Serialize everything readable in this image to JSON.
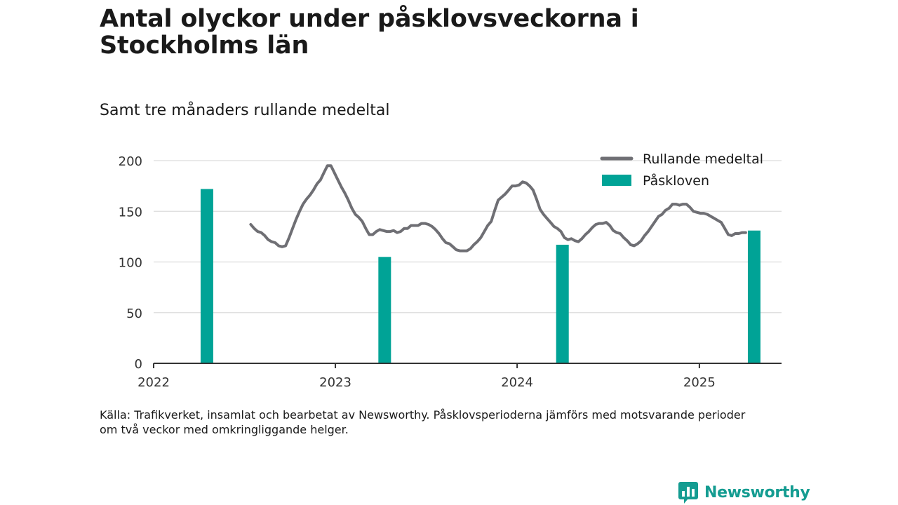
{
  "title": "Antal olyckor under påsklovsveckorna i Stockholms län",
  "subtitle": "Samt tre månaders rullande medeltal",
  "source": {
    "line1": "Källa: Trafikverket, insamlat och bearbetat av Newsworthy. Påsklovsperioderna jämförs med motsvarande perioder",
    "line2": "om två veckor med omkringliggande helger."
  },
  "logo": {
    "icon": "newsworthy-logo-icon",
    "text": "Newsworthy"
  },
  "colors": {
    "line": "#6f6f74",
    "bar": "#00a396",
    "grid": "#dcdcdc",
    "axis": "#333333",
    "logo": "#149c91"
  },
  "chart_data": {
    "type": "bar",
    "title": "Antal olyckor under påsklovsveckorna i Stockholms län",
    "subtitle": "Samt tre månaders rullande medeltal",
    "xlabel": "",
    "ylabel": "",
    "ylim": [
      0,
      200
    ],
    "yticks": [
      "0",
      "50",
      "100",
      "150",
      "200"
    ],
    "xlim": [
      "2022-01-01",
      "2025-06-15"
    ],
    "xticks": [
      "2022",
      "2023",
      "2024",
      "2025"
    ],
    "grid": true,
    "legend_position": "top-right",
    "series": [
      {
        "name": "Påskloven",
        "type": "bar",
        "color": "#00a396",
        "points": [
          {
            "x": "2022-04-18",
            "y": 172
          },
          {
            "x": "2023-04-10",
            "y": 105
          },
          {
            "x": "2024-04-01",
            "y": 117
          },
          {
            "x": "2025-04-21",
            "y": 131
          }
        ]
      },
      {
        "name": "Rullande medeltal",
        "type": "line",
        "color": "#6f6f74",
        "points": [
          {
            "x": "2022-07-15",
            "y": 137
          },
          {
            "x": "2022-07-22",
            "y": 133
          },
          {
            "x": "2022-07-29",
            "y": 130
          },
          {
            "x": "2022-08-05",
            "y": 129
          },
          {
            "x": "2022-08-12",
            "y": 126
          },
          {
            "x": "2022-08-19",
            "y": 122
          },
          {
            "x": "2022-08-26",
            "y": 120
          },
          {
            "x": "2022-09-02",
            "y": 119
          },
          {
            "x": "2022-09-09",
            "y": 116
          },
          {
            "x": "2022-09-16",
            "y": 115
          },
          {
            "x": "2022-09-23",
            "y": 116
          },
          {
            "x": "2022-09-30",
            "y": 124
          },
          {
            "x": "2022-10-07",
            "y": 133
          },
          {
            "x": "2022-10-14",
            "y": 142
          },
          {
            "x": "2022-10-21",
            "y": 150
          },
          {
            "x": "2022-10-28",
            "y": 157
          },
          {
            "x": "2022-11-04",
            "y": 162
          },
          {
            "x": "2022-11-11",
            "y": 166
          },
          {
            "x": "2022-11-18",
            "y": 171
          },
          {
            "x": "2022-11-25",
            "y": 177
          },
          {
            "x": "2022-12-02",
            "y": 181
          },
          {
            "x": "2022-12-09",
            "y": 188
          },
          {
            "x": "2022-12-16",
            "y": 195
          },
          {
            "x": "2022-12-23",
            "y": 195
          },
          {
            "x": "2022-12-30",
            "y": 188
          },
          {
            "x": "2023-01-06",
            "y": 181
          },
          {
            "x": "2023-01-13",
            "y": 174
          },
          {
            "x": "2023-01-20",
            "y": 168
          },
          {
            "x": "2023-01-27",
            "y": 161
          },
          {
            "x": "2023-02-03",
            "y": 153
          },
          {
            "x": "2023-02-10",
            "y": 147
          },
          {
            "x": "2023-02-17",
            "y": 144
          },
          {
            "x": "2023-02-24",
            "y": 140
          },
          {
            "x": "2023-03-03",
            "y": 133
          },
          {
            "x": "2023-03-10",
            "y": 127
          },
          {
            "x": "2023-03-17",
            "y": 127
          },
          {
            "x": "2023-03-24",
            "y": 130
          },
          {
            "x": "2023-03-31",
            "y": 132
          },
          {
            "x": "2023-04-07",
            "y": 131
          },
          {
            "x": "2023-04-14",
            "y": 130
          },
          {
            "x": "2023-04-21",
            "y": 130
          },
          {
            "x": "2023-04-28",
            "y": 131
          },
          {
            "x": "2023-05-05",
            "y": 129
          },
          {
            "x": "2023-05-12",
            "y": 130
          },
          {
            "x": "2023-05-19",
            "y": 133
          },
          {
            "x": "2023-05-26",
            "y": 133
          },
          {
            "x": "2023-06-02",
            "y": 136
          },
          {
            "x": "2023-06-09",
            "y": 136
          },
          {
            "x": "2023-06-16",
            "y": 136
          },
          {
            "x": "2023-06-23",
            "y": 138
          },
          {
            "x": "2023-06-30",
            "y": 138
          },
          {
            "x": "2023-07-07",
            "y": 137
          },
          {
            "x": "2023-07-14",
            "y": 135
          },
          {
            "x": "2023-07-21",
            "y": 132
          },
          {
            "x": "2023-07-28",
            "y": 128
          },
          {
            "x": "2023-08-04",
            "y": 123
          },
          {
            "x": "2023-08-11",
            "y": 119
          },
          {
            "x": "2023-08-18",
            "y": 118
          },
          {
            "x": "2023-08-25",
            "y": 115
          },
          {
            "x": "2023-09-01",
            "y": 112
          },
          {
            "x": "2023-09-08",
            "y": 111
          },
          {
            "x": "2023-09-15",
            "y": 111
          },
          {
            "x": "2023-09-22",
            "y": 111
          },
          {
            "x": "2023-09-29",
            "y": 113
          },
          {
            "x": "2023-10-06",
            "y": 117
          },
          {
            "x": "2023-10-13",
            "y": 120
          },
          {
            "x": "2023-10-20",
            "y": 124
          },
          {
            "x": "2023-10-27",
            "y": 130
          },
          {
            "x": "2023-11-03",
            "y": 136
          },
          {
            "x": "2023-11-10",
            "y": 140
          },
          {
            "x": "2023-11-17",
            "y": 151
          },
          {
            "x": "2023-11-24",
            "y": 161
          },
          {
            "x": "2023-12-01",
            "y": 164
          },
          {
            "x": "2023-12-08",
            "y": 167
          },
          {
            "x": "2023-12-15",
            "y": 171
          },
          {
            "x": "2023-12-22",
            "y": 175
          },
          {
            "x": "2023-12-29",
            "y": 175
          },
          {
            "x": "2024-01-05",
            "y": 176
          },
          {
            "x": "2024-01-12",
            "y": 179
          },
          {
            "x": "2024-01-19",
            "y": 178
          },
          {
            "x": "2024-01-26",
            "y": 175
          },
          {
            "x": "2024-02-02",
            "y": 171
          },
          {
            "x": "2024-02-09",
            "y": 162
          },
          {
            "x": "2024-02-16",
            "y": 152
          },
          {
            "x": "2024-02-23",
            "y": 147
          },
          {
            "x": "2024-03-01",
            "y": 143
          },
          {
            "x": "2024-03-08",
            "y": 139
          },
          {
            "x": "2024-03-15",
            "y": 135
          },
          {
            "x": "2024-03-22",
            "y": 133
          },
          {
            "x": "2024-03-29",
            "y": 130
          },
          {
            "x": "2024-04-05",
            "y": 124
          },
          {
            "x": "2024-04-12",
            "y": 122
          },
          {
            "x": "2024-04-19",
            "y": 123
          },
          {
            "x": "2024-04-26",
            "y": 121
          },
          {
            "x": "2024-05-03",
            "y": 120
          },
          {
            "x": "2024-05-10",
            "y": 123
          },
          {
            "x": "2024-05-17",
            "y": 127
          },
          {
            "x": "2024-05-24",
            "y": 130
          },
          {
            "x": "2024-05-31",
            "y": 134
          },
          {
            "x": "2024-06-07",
            "y": 137
          },
          {
            "x": "2024-06-14",
            "y": 138
          },
          {
            "x": "2024-06-21",
            "y": 138
          },
          {
            "x": "2024-06-28",
            "y": 139
          },
          {
            "x": "2024-07-05",
            "y": 136
          },
          {
            "x": "2024-07-12",
            "y": 131
          },
          {
            "x": "2024-07-19",
            "y": 129
          },
          {
            "x": "2024-07-26",
            "y": 128
          },
          {
            "x": "2024-08-02",
            "y": 124
          },
          {
            "x": "2024-08-09",
            "y": 121
          },
          {
            "x": "2024-08-16",
            "y": 117
          },
          {
            "x": "2024-08-23",
            "y": 116
          },
          {
            "x": "2024-08-30",
            "y": 118
          },
          {
            "x": "2024-09-06",
            "y": 121
          },
          {
            "x": "2024-09-13",
            "y": 126
          },
          {
            "x": "2024-09-20",
            "y": 130
          },
          {
            "x": "2024-09-27",
            "y": 135
          },
          {
            "x": "2024-10-04",
            "y": 140
          },
          {
            "x": "2024-10-11",
            "y": 145
          },
          {
            "x": "2024-10-18",
            "y": 147
          },
          {
            "x": "2024-10-25",
            "y": 151
          },
          {
            "x": "2024-11-01",
            "y": 153
          },
          {
            "x": "2024-11-08",
            "y": 157
          },
          {
            "x": "2024-11-15",
            "y": 157
          },
          {
            "x": "2024-11-22",
            "y": 156
          },
          {
            "x": "2024-11-29",
            "y": 157
          },
          {
            "x": "2024-12-06",
            "y": 157
          },
          {
            "x": "2024-12-13",
            "y": 154
          },
          {
            "x": "2024-12-20",
            "y": 150
          },
          {
            "x": "2024-12-27",
            "y": 149
          },
          {
            "x": "2025-01-03",
            "y": 148
          },
          {
            "x": "2025-01-10",
            "y": 148
          },
          {
            "x": "2025-01-17",
            "y": 147
          },
          {
            "x": "2025-01-24",
            "y": 145
          },
          {
            "x": "2025-01-31",
            "y": 143
          },
          {
            "x": "2025-02-07",
            "y": 141
          },
          {
            "x": "2025-02-14",
            "y": 139
          },
          {
            "x": "2025-02-21",
            "y": 133
          },
          {
            "x": "2025-02-28",
            "y": 127
          },
          {
            "x": "2025-03-07",
            "y": 126
          },
          {
            "x": "2025-03-14",
            "y": 128
          },
          {
            "x": "2025-03-21",
            "y": 128
          },
          {
            "x": "2025-03-28",
            "y": 129
          },
          {
            "x": "2025-04-04",
            "y": 129
          }
        ]
      }
    ]
  }
}
